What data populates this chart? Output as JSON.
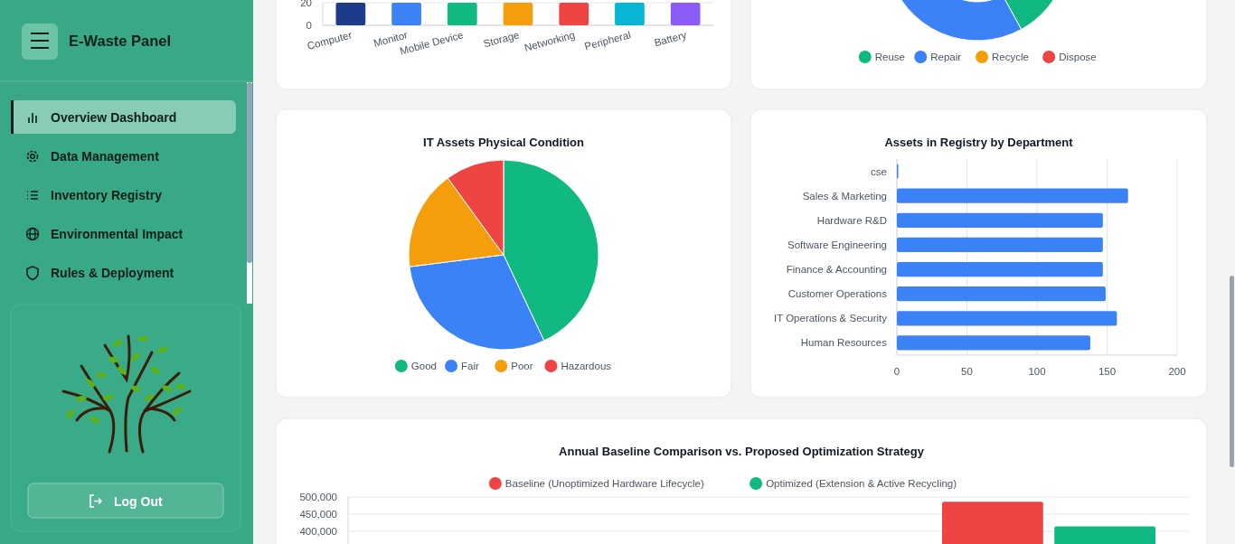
{
  "chart_data": [
    {
      "type": "other",
      "title": "E-Waste Panel",
      "annotations": [
        "Overview Dashboard",
        "Data Management",
        "Inventory Registry",
        "Environmental Impact",
        "Rules & Deployment",
        "Log Out"
      ]
    },
    {
      "type": "bar",
      "categories": [
        "Computer",
        "Monitor",
        "Mobile Device",
        "Storage",
        "Networking",
        "Peripheral",
        "Battery"
      ],
      "values": [
        20,
        20,
        20,
        20,
        20,
        20,
        20
      ],
      "colors": [
        "#1e3a8a",
        "#3b82f6",
        "#10b981",
        "#f59e0b",
        "#ef4444",
        "#06b6d4",
        "#8b5cf6"
      ],
      "ylim": [
        0,
        20
      ],
      "yticks": [
        0,
        20
      ],
      "grid": "y"
    },
    {
      "type": "donut",
      "categories": [
        "Reuse",
        "Repair",
        "Recycle",
        "Dispose"
      ],
      "values": [
        42,
        58,
        null,
        null
      ],
      "colors": [
        "#10b981",
        "#3b82f6",
        "#f59e0b",
        "#ef4444"
      ],
      "legend": "bottom"
    },
    {
      "type": "pie",
      "title": "IT Assets Physical Condition",
      "categories": [
        "Good",
        "Fair",
        "Poor",
        "Hazardous"
      ],
      "values": [
        43,
        30,
        17,
        10
      ],
      "colors": [
        "#10b981",
        "#3b82f6",
        "#f59e0b",
        "#ef4444"
      ],
      "legend": "bottom"
    },
    {
      "type": "bar",
      "orientation": "horizontal",
      "title": "Assets in Registry by Department",
      "categories": [
        "cse",
        "Sales & Marketing",
        "Hardware R&D",
        "Software Engineering",
        "Finance & Accounting",
        "Customer Operations",
        "IT Operations & Security",
        "Human Resources"
      ],
      "values": [
        1,
        165,
        147,
        147,
        147,
        149,
        157,
        138
      ],
      "color": "#3b82f6",
      "xlim": [
        0,
        200
      ],
      "xticks": [
        0,
        50,
        100,
        150,
        200
      ],
      "grid": "x"
    },
    {
      "type": "bar",
      "title": "Annual Baseline Comparison vs. Proposed Optimization Strategy",
      "categories": [
        null,
        null,
        null
      ],
      "series": [
        {
          "name": "Baseline (Unoptimized Hardware Lifecycle)",
          "color": "#ef4444",
          "values": [
            null,
            null,
            486000
          ]
        },
        {
          "name": "Optimized (Extension & Active Recycling)",
          "color": "#10b981",
          "values": [
            null,
            null,
            414000
          ]
        }
      ],
      "ylim": [
        0,
        500000
      ],
      "yticks": [
        {
          "value": 400000,
          "label": "400,000"
        },
        {
          "value": 450000,
          "label": "450,000"
        },
        {
          "value": 500000,
          "label": "500,000"
        }
      ],
      "grid": "y",
      "legend": "top"
    }
  ]
}
